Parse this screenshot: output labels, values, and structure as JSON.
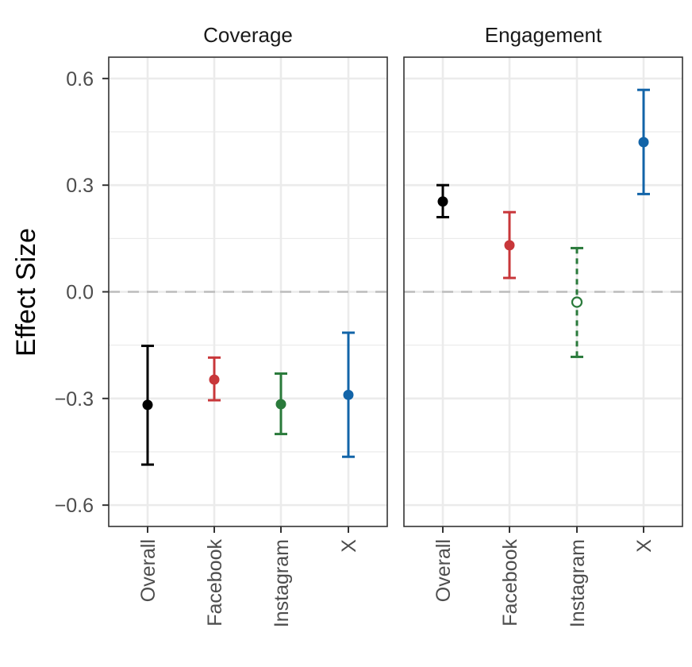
{
  "chart_data": {
    "type": "scatter",
    "subtype": "point-with-errorbars",
    "ylabel": "Effect Size",
    "xlabel": "",
    "ylim": [
      -0.66,
      0.66
    ],
    "yticks": [
      0.6,
      0.3,
      0.0,
      -0.3,
      -0.6
    ],
    "ytick_labels": [
      "0.6",
      "0.3",
      "0.0",
      "−0.3",
      "−0.6"
    ],
    "categories": [
      "Overall",
      "Facebook",
      "Instagram",
      "X"
    ],
    "reference_line": 0.0,
    "grid": true,
    "colors": {
      "Overall": "#000000",
      "Facebook": "#c8373a",
      "Instagram": "#2a7a3b",
      "X": "#1264a8",
      "reference": "#bdbdbd",
      "grid": "#ebebeb",
      "panel_border": "#333333"
    },
    "panels": [
      {
        "name": "Coverage",
        "points": [
          {
            "category": "Overall",
            "estimate": -0.318,
            "lower": -0.486,
            "upper": -0.152,
            "significant": true
          },
          {
            "category": "Facebook",
            "estimate": -0.247,
            "lower": -0.305,
            "upper": -0.185,
            "significant": true
          },
          {
            "category": "Instagram",
            "estimate": -0.316,
            "lower": -0.4,
            "upper": -0.23,
            "significant": true
          },
          {
            "category": "X",
            "estimate": -0.29,
            "lower": -0.464,
            "upper": -0.115,
            "significant": true
          }
        ]
      },
      {
        "name": "Engagement",
        "points": [
          {
            "category": "Overall",
            "estimate": 0.254,
            "lower": 0.21,
            "upper": 0.3,
            "significant": true
          },
          {
            "category": "Facebook",
            "estimate": 0.131,
            "lower": 0.039,
            "upper": 0.224,
            "significant": true
          },
          {
            "category": "Instagram",
            "estimate": -0.029,
            "lower": -0.183,
            "upper": 0.123,
            "significant": false
          },
          {
            "category": "X",
            "estimate": 0.421,
            "lower": 0.275,
            "upper": 0.568,
            "significant": true
          }
        ]
      }
    ]
  }
}
